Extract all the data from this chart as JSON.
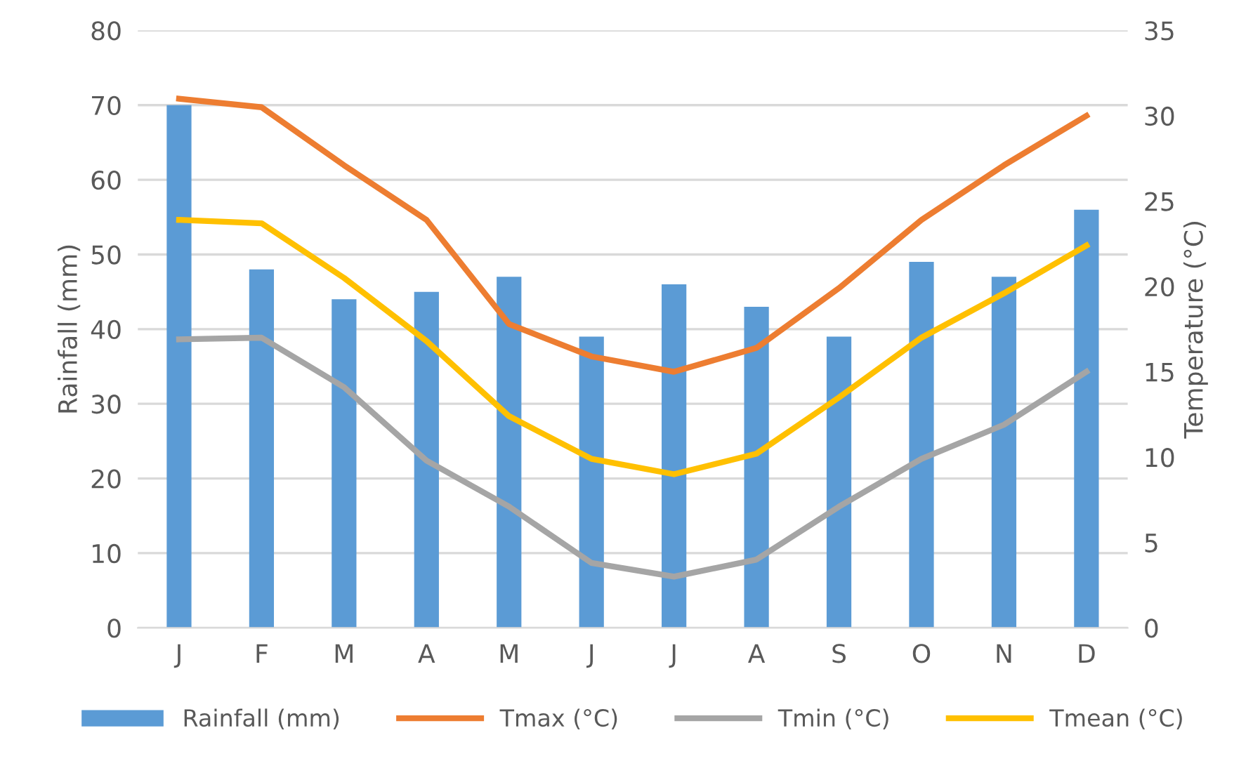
{
  "chart_data": {
    "type": "bar",
    "ylabel": "Rainfall (mm)",
    "y2label": "Temperature (°C)",
    "categories": [
      "J",
      "F",
      "M",
      "A",
      "M",
      "J",
      "J",
      "A",
      "S",
      "O",
      "N",
      "D"
    ],
    "series": [
      {
        "name": "Rainfall (mm)",
        "color": "#5b9bd5",
        "values": [
          70,
          48,
          44,
          45,
          47,
          39,
          46,
          43,
          39,
          49,
          47,
          56
        ]
      },
      {
        "name": "Tmax (°C)",
        "type": "line",
        "axis": "y2",
        "color": "#ed7d31",
        "values": [
          31.0,
          30.5,
          27.1,
          23.9,
          17.8,
          15.9,
          15.0,
          16.4,
          19.9,
          23.9,
          27.1,
          30.0
        ]
      },
      {
        "name": "Tmin (°C)",
        "type": "line",
        "axis": "y2",
        "color": "#a5a5a5",
        "values": [
          16.9,
          17.0,
          14.1,
          9.8,
          7.1,
          3.8,
          3.0,
          4.0,
          7.1,
          9.9,
          11.9,
          15.0
        ]
      },
      {
        "name": "Tmean (°C)",
        "type": "line",
        "axis": "y2",
        "color": "#ffc000",
        "values": [
          23.9,
          23.7,
          20.5,
          16.8,
          12.4,
          9.9,
          9.0,
          10.2,
          13.5,
          17.0,
          19.6,
          22.4
        ]
      }
    ],
    "ylim": [
      0,
      80
    ],
    "yticks": [
      0,
      10,
      20,
      30,
      40,
      50,
      60,
      70,
      80
    ],
    "y2lim": [
      0,
      35
    ],
    "y2ticks": [
      0,
      5,
      10,
      15,
      20,
      25,
      30,
      35
    ],
    "grid": "y",
    "legend": "bottom",
    "marker": "none",
    "line_style": "solid"
  }
}
